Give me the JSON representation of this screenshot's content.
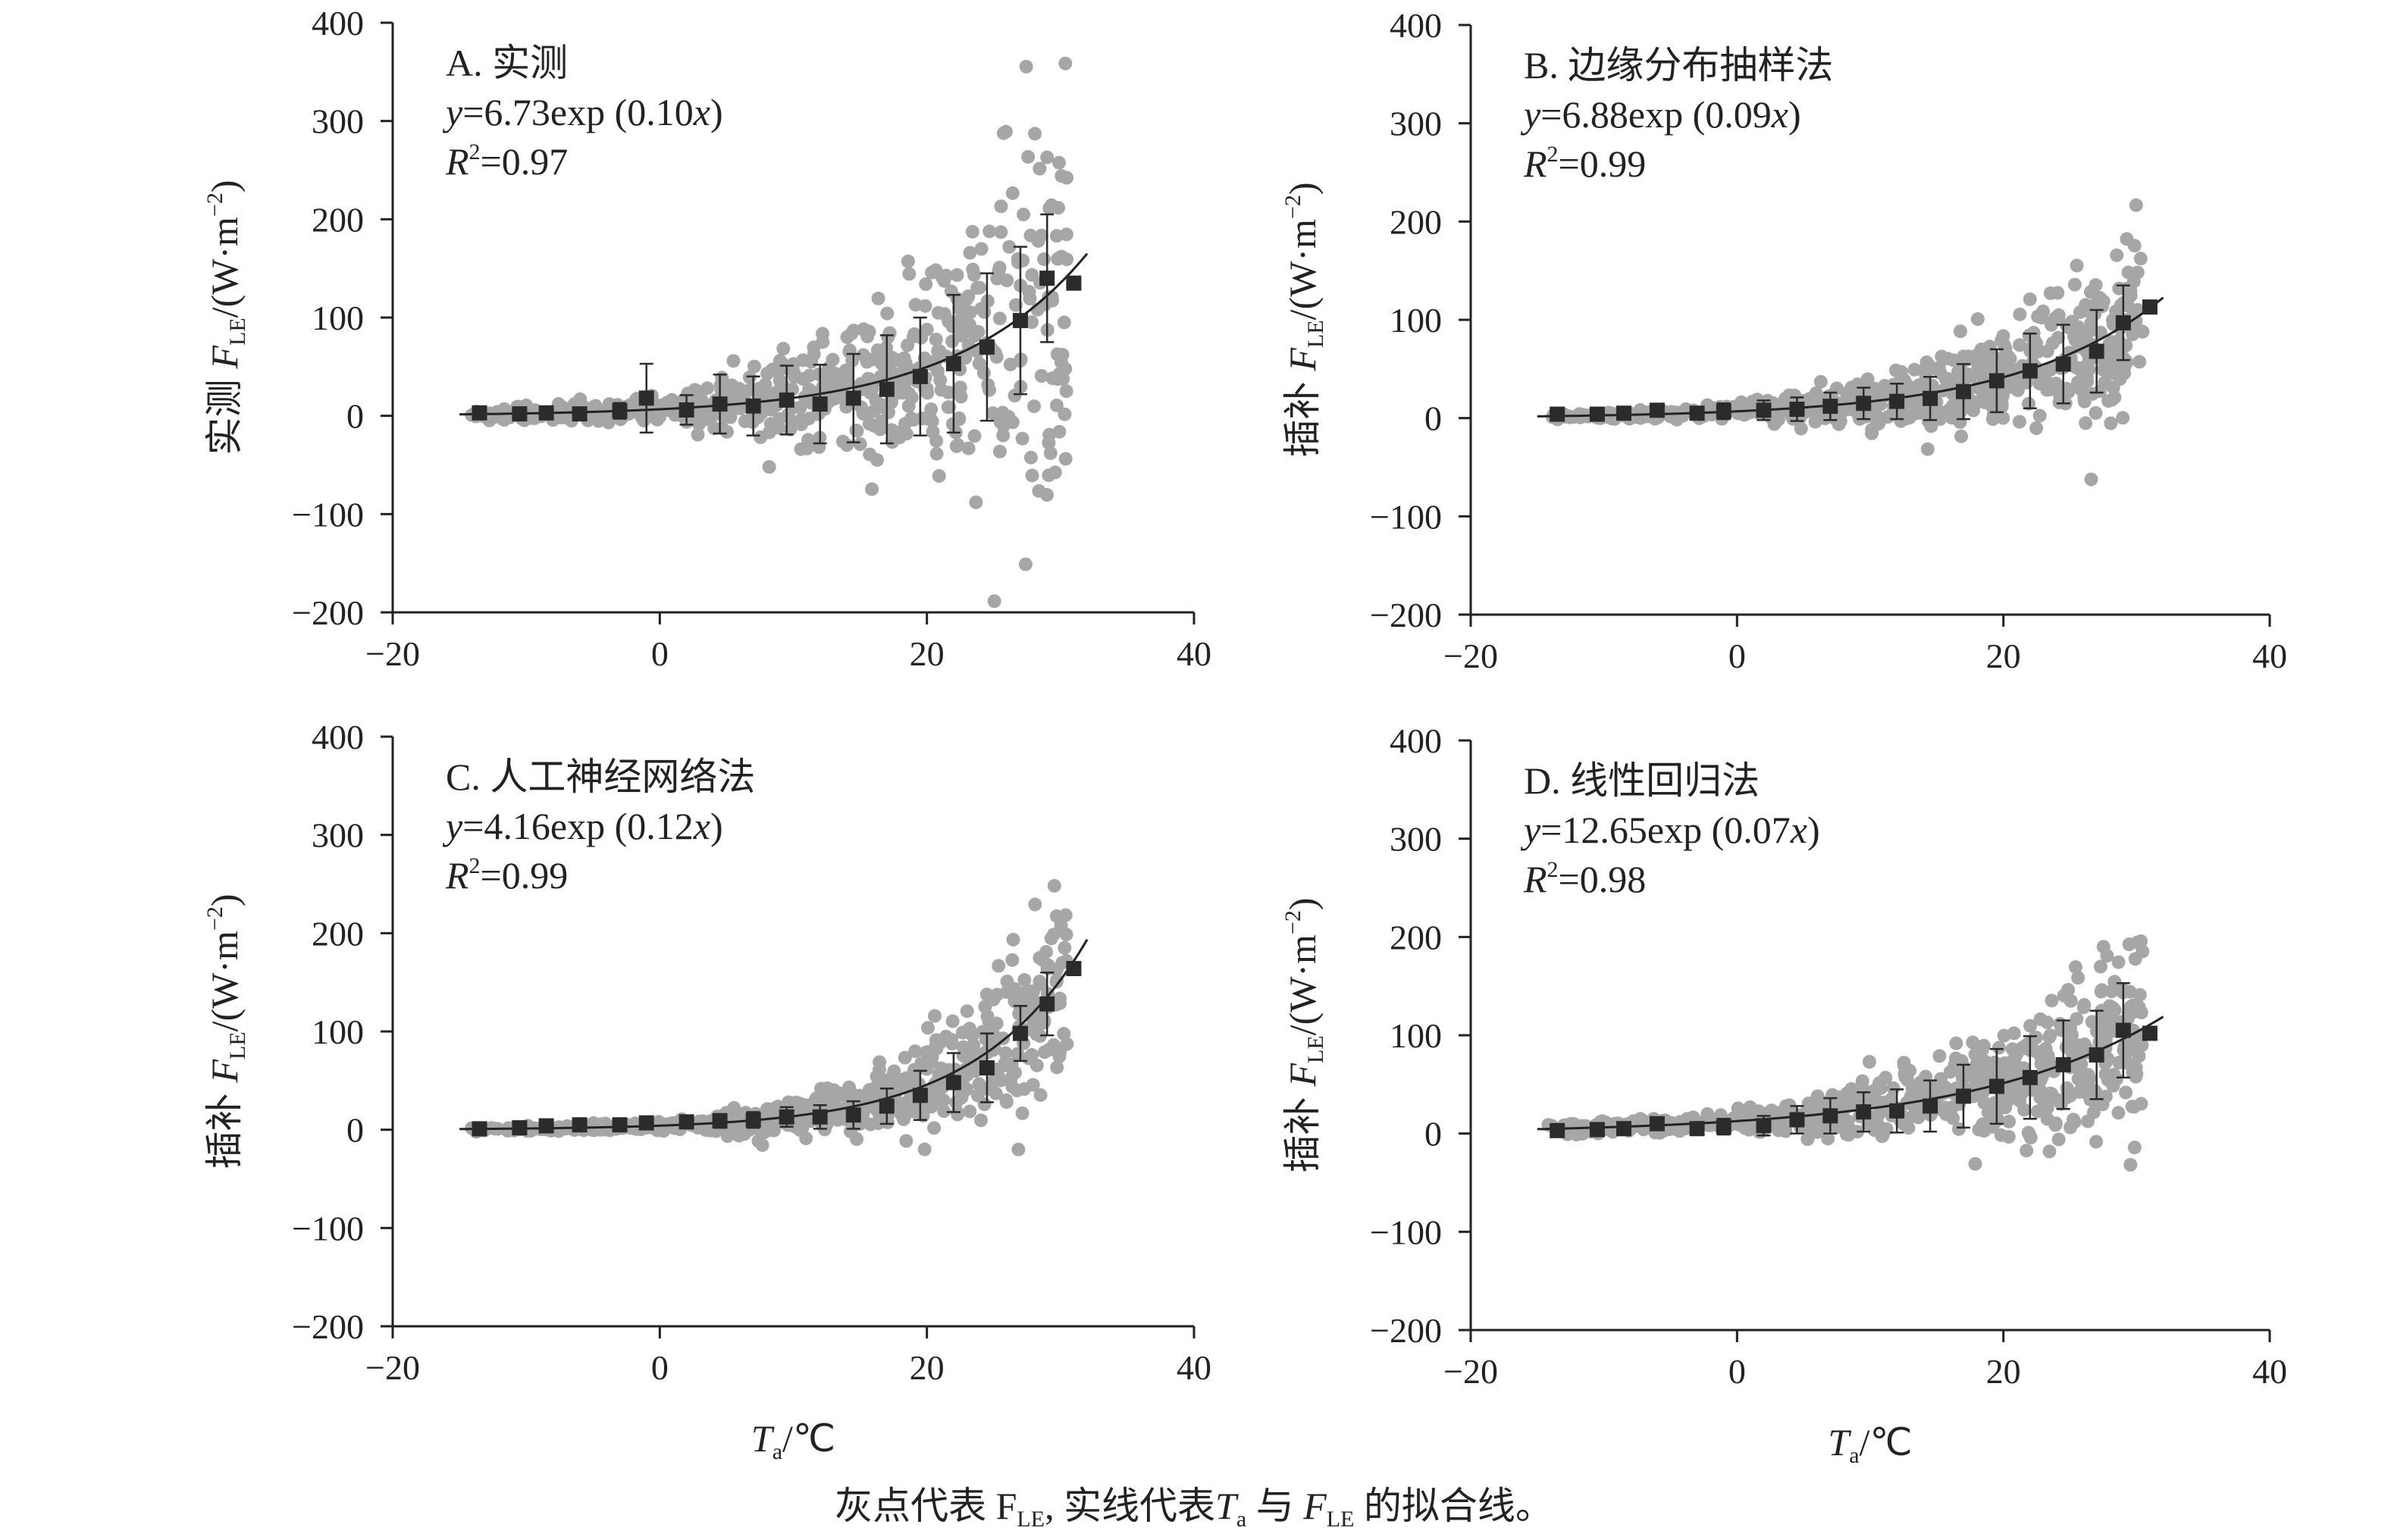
{
  "caption": {
    "p1": "灰点代表 F",
    "s1": "LE",
    "p2": ", 实线代表",
    "p3": "T",
    "s2": "a",
    "p4": " 与 ",
    "p5": "F",
    "s3": "LE",
    "p6": " 的拟合线。"
  },
  "colors": {
    "points": "#a6a6a6",
    "markers": "#2b2b2b",
    "axes": "#222222",
    "fit": "#222222"
  },
  "chart_data": [
    {
      "type": "scatter",
      "id": "A",
      "title": "A. 实测",
      "equation": {
        "pre": "=6.73exp (0.10",
        "post": ")"
      },
      "r2": "=0.97",
      "ylabel": {
        "prefix": "实测",
        "main": "/(W·m",
        "sup": "−2",
        "end": ")"
      },
      "xlabel": {
        "main": "T",
        "sub": "a",
        "unit": "/℃"
      },
      "xlim": [
        -20,
        40
      ],
      "ylim": [
        -200,
        400
      ],
      "xticks": [
        "−20",
        "0",
        "20",
        "40"
      ],
      "yticks": [
        "−200",
        "−100",
        "0",
        "100",
        "200",
        "300",
        "400"
      ],
      "fit": {
        "a": 6.73,
        "b": 0.1,
        "x_range": [
          -15,
          32
        ]
      },
      "scatter_spread": 0.95,
      "bin_means": {
        "x": [
          -13.5,
          -10.5,
          -8.5,
          -6,
          -3,
          -1,
          2,
          4.5,
          7,
          9.5,
          12,
          14.5,
          17,
          19.5,
          22,
          24.5,
          27,
          29,
          31
        ],
        "y": [
          3,
          2,
          3,
          2,
          5,
          18,
          6,
          12,
          10,
          16,
          12,
          18,
          27,
          40,
          53,
          70,
          97,
          140,
          135
        ],
        "err": [
          2,
          2,
          3,
          3,
          8,
          35,
          15,
          30,
          30,
          35,
          40,
          45,
          55,
          60,
          70,
          75,
          75,
          65,
          0
        ]
      }
    },
    {
      "type": "scatter",
      "id": "B",
      "title": "B. 边缘分布抽样法",
      "equation": {
        "pre": "=6.88exp (0.09",
        "post": ")"
      },
      "r2": "=0.99",
      "ylabel": {
        "prefix": "插补",
        "main": "/(W·m",
        "sup": "−2",
        "end": ")"
      },
      "xlabel": {
        "main": "T",
        "sub": "a",
        "unit": "/℃"
      },
      "xlim": [
        -20,
        40
      ],
      "ylim": [
        -200,
        400
      ],
      "xticks": [
        "−20",
        "0",
        "20",
        "40"
      ],
      "yticks": [
        "−200",
        "−100",
        "0",
        "100",
        "200",
        "300",
        "400"
      ],
      "fit": {
        "a": 6.88,
        "b": 0.09,
        "x_range": [
          -15,
          32
        ]
      },
      "scatter_spread": 0.55,
      "bin_means": {
        "x": [
          -13.5,
          -10.5,
          -8.5,
          -6,
          -3,
          -1,
          2,
          4.5,
          7,
          9.5,
          12,
          14.5,
          17,
          19.5,
          22,
          24.5,
          27,
          29,
          31
        ],
        "y": [
          4,
          4,
          5,
          8,
          5,
          7,
          8,
          9,
          12,
          15,
          17,
          20,
          27,
          38,
          48,
          55,
          68,
          97,
          113
        ],
        "err": [
          2,
          2,
          3,
          3,
          4,
          8,
          10,
          12,
          14,
          16,
          18,
          22,
          28,
          32,
          38,
          40,
          42,
          38,
          0
        ]
      }
    },
    {
      "type": "scatter",
      "id": "C",
      "title": "C. 人工神经网络法",
      "equation": {
        "pre": "=4.16exp (0.12",
        "post": ")"
      },
      "r2": "=0.99",
      "ylabel": {
        "prefix": "插补",
        "main": "/(W·m",
        "sup": "−2",
        "end": ")"
      },
      "xlabel": {
        "main": "T",
        "sub": "a",
        "unit": "/℃"
      },
      "xlim": [
        -20,
        40
      ],
      "ylim": [
        -200,
        400
      ],
      "xticks": [
        "−20",
        "0",
        "20",
        "40"
      ],
      "yticks": [
        "−200",
        "−100",
        "0",
        "100",
        "200",
        "300",
        "400"
      ],
      "fit": {
        "a": 4.16,
        "b": 0.12,
        "x_range": [
          -15,
          32
        ]
      },
      "scatter_spread": 0.45,
      "bin_means": {
        "x": [
          -13.5,
          -10.5,
          -8.5,
          -6,
          -3,
          -1,
          2,
          4.5,
          7,
          9.5,
          12,
          14.5,
          17,
          19.5,
          22,
          24.5,
          27,
          29,
          31
        ],
        "y": [
          1,
          2,
          4,
          5,
          5,
          7,
          8,
          9,
          10,
          13,
          13,
          15,
          24,
          35,
          48,
          63,
          98,
          128,
          164
        ],
        "err": [
          2,
          2,
          3,
          3,
          4,
          5,
          6,
          7,
          8,
          10,
          12,
          14,
          18,
          25,
          30,
          35,
          28,
          32,
          0
        ]
      }
    },
    {
      "type": "scatter",
      "id": "D",
      "title": "D. 线性回归法",
      "equation": {
        "pre": "=12.65exp (0.07",
        "post": ")"
      },
      "r2": "=0.98",
      "ylabel": {
        "prefix": "插补",
        "main": "/(W·m",
        "sup": "−2",
        "end": ")"
      },
      "xlabel": {
        "main": "T",
        "sub": "a",
        "unit": "/℃"
      },
      "xlim": [
        -20,
        40
      ],
      "ylim": [
        -200,
        400
      ],
      "xticks": [
        "−20",
        "0",
        "20",
        "40"
      ],
      "yticks": [
        "−200",
        "−100",
        "0",
        "100",
        "200",
        "300",
        "400"
      ],
      "fit": {
        "a": 12.65,
        "b": 0.07,
        "x_range": [
          -15,
          32
        ]
      },
      "scatter_spread": 0.5,
      "bin_means": {
        "x": [
          -13.5,
          -10.5,
          -8.5,
          -6,
          -3,
          -1,
          2,
          4.5,
          7,
          9.5,
          12,
          14.5,
          17,
          19.5,
          22,
          24.5,
          27,
          29,
          31
        ],
        "y": [
          3,
          4,
          5,
          10,
          5,
          7,
          8,
          14,
          18,
          22,
          23,
          28,
          38,
          48,
          57,
          70,
          80,
          105,
          102
        ],
        "err": [
          2,
          2,
          3,
          4,
          5,
          8,
          10,
          14,
          18,
          20,
          22,
          26,
          32,
          38,
          42,
          45,
          45,
          48,
          0
        ]
      }
    }
  ]
}
